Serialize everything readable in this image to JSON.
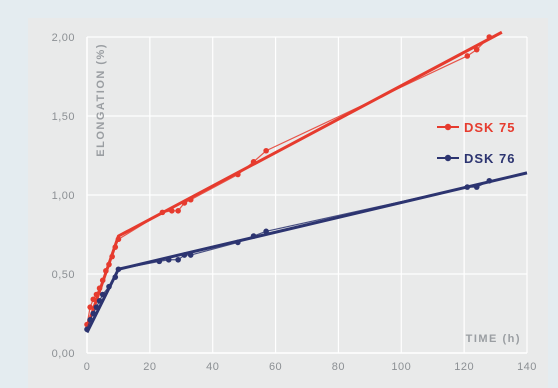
{
  "chart_data": {
    "type": "line",
    "ylabel": "ELONGATION (%)",
    "xlabel": "TIME (h)",
    "xlim": [
      0,
      140
    ],
    "ylim": [
      0,
      2
    ],
    "x_ticks": [
      "0",
      "20",
      "40",
      "60",
      "80",
      "100",
      "120",
      "140"
    ],
    "y_ticks": [
      "0,00",
      "0,50",
      "1,00",
      "1,50",
      "2,00"
    ],
    "grid": true,
    "legend_position": "right",
    "series": [
      {
        "name": "DSK 75",
        "color": "#e63b2e",
        "points": [
          [
            0,
            0.18
          ],
          [
            1,
            0.29
          ],
          [
            2,
            0.34
          ],
          [
            3,
            0.37
          ],
          [
            4,
            0.41
          ],
          [
            5,
            0.46
          ],
          [
            6,
            0.52
          ],
          [
            7,
            0.56
          ],
          [
            8,
            0.61
          ],
          [
            9,
            0.67
          ],
          [
            10,
            0.72
          ],
          [
            24,
            0.89
          ],
          [
            27,
            0.9
          ],
          [
            29,
            0.9
          ],
          [
            31,
            0.95
          ],
          [
            33,
            0.97
          ],
          [
            48,
            1.13
          ],
          [
            53,
            1.21
          ],
          [
            57,
            1.28
          ],
          [
            121,
            1.88
          ],
          [
            124,
            1.92
          ],
          [
            128,
            2.0
          ]
        ],
        "fit": [
          [
            0,
            0.16
          ],
          [
            10,
            0.74
          ],
          [
            132,
            2.03
          ]
        ]
      },
      {
        "name": "DSK 76",
        "color": "#2c3470",
        "points": [
          [
            0,
            0.15
          ],
          [
            1,
            0.21
          ],
          [
            2,
            0.25
          ],
          [
            3,
            0.29
          ],
          [
            4,
            0.33
          ],
          [
            5,
            0.37
          ],
          [
            7,
            0.42
          ],
          [
            9,
            0.48
          ],
          [
            10,
            0.53
          ],
          [
            23,
            0.58
          ],
          [
            26,
            0.59
          ],
          [
            29,
            0.59
          ],
          [
            31,
            0.62
          ],
          [
            33,
            0.62
          ],
          [
            48,
            0.7
          ],
          [
            53,
            0.74
          ],
          [
            57,
            0.77
          ],
          [
            121,
            1.05
          ],
          [
            124,
            1.05
          ],
          [
            128,
            1.09
          ]
        ],
        "fit": [
          [
            0,
            0.13
          ],
          [
            10,
            0.53
          ],
          [
            140,
            1.14
          ]
        ]
      }
    ]
  }
}
